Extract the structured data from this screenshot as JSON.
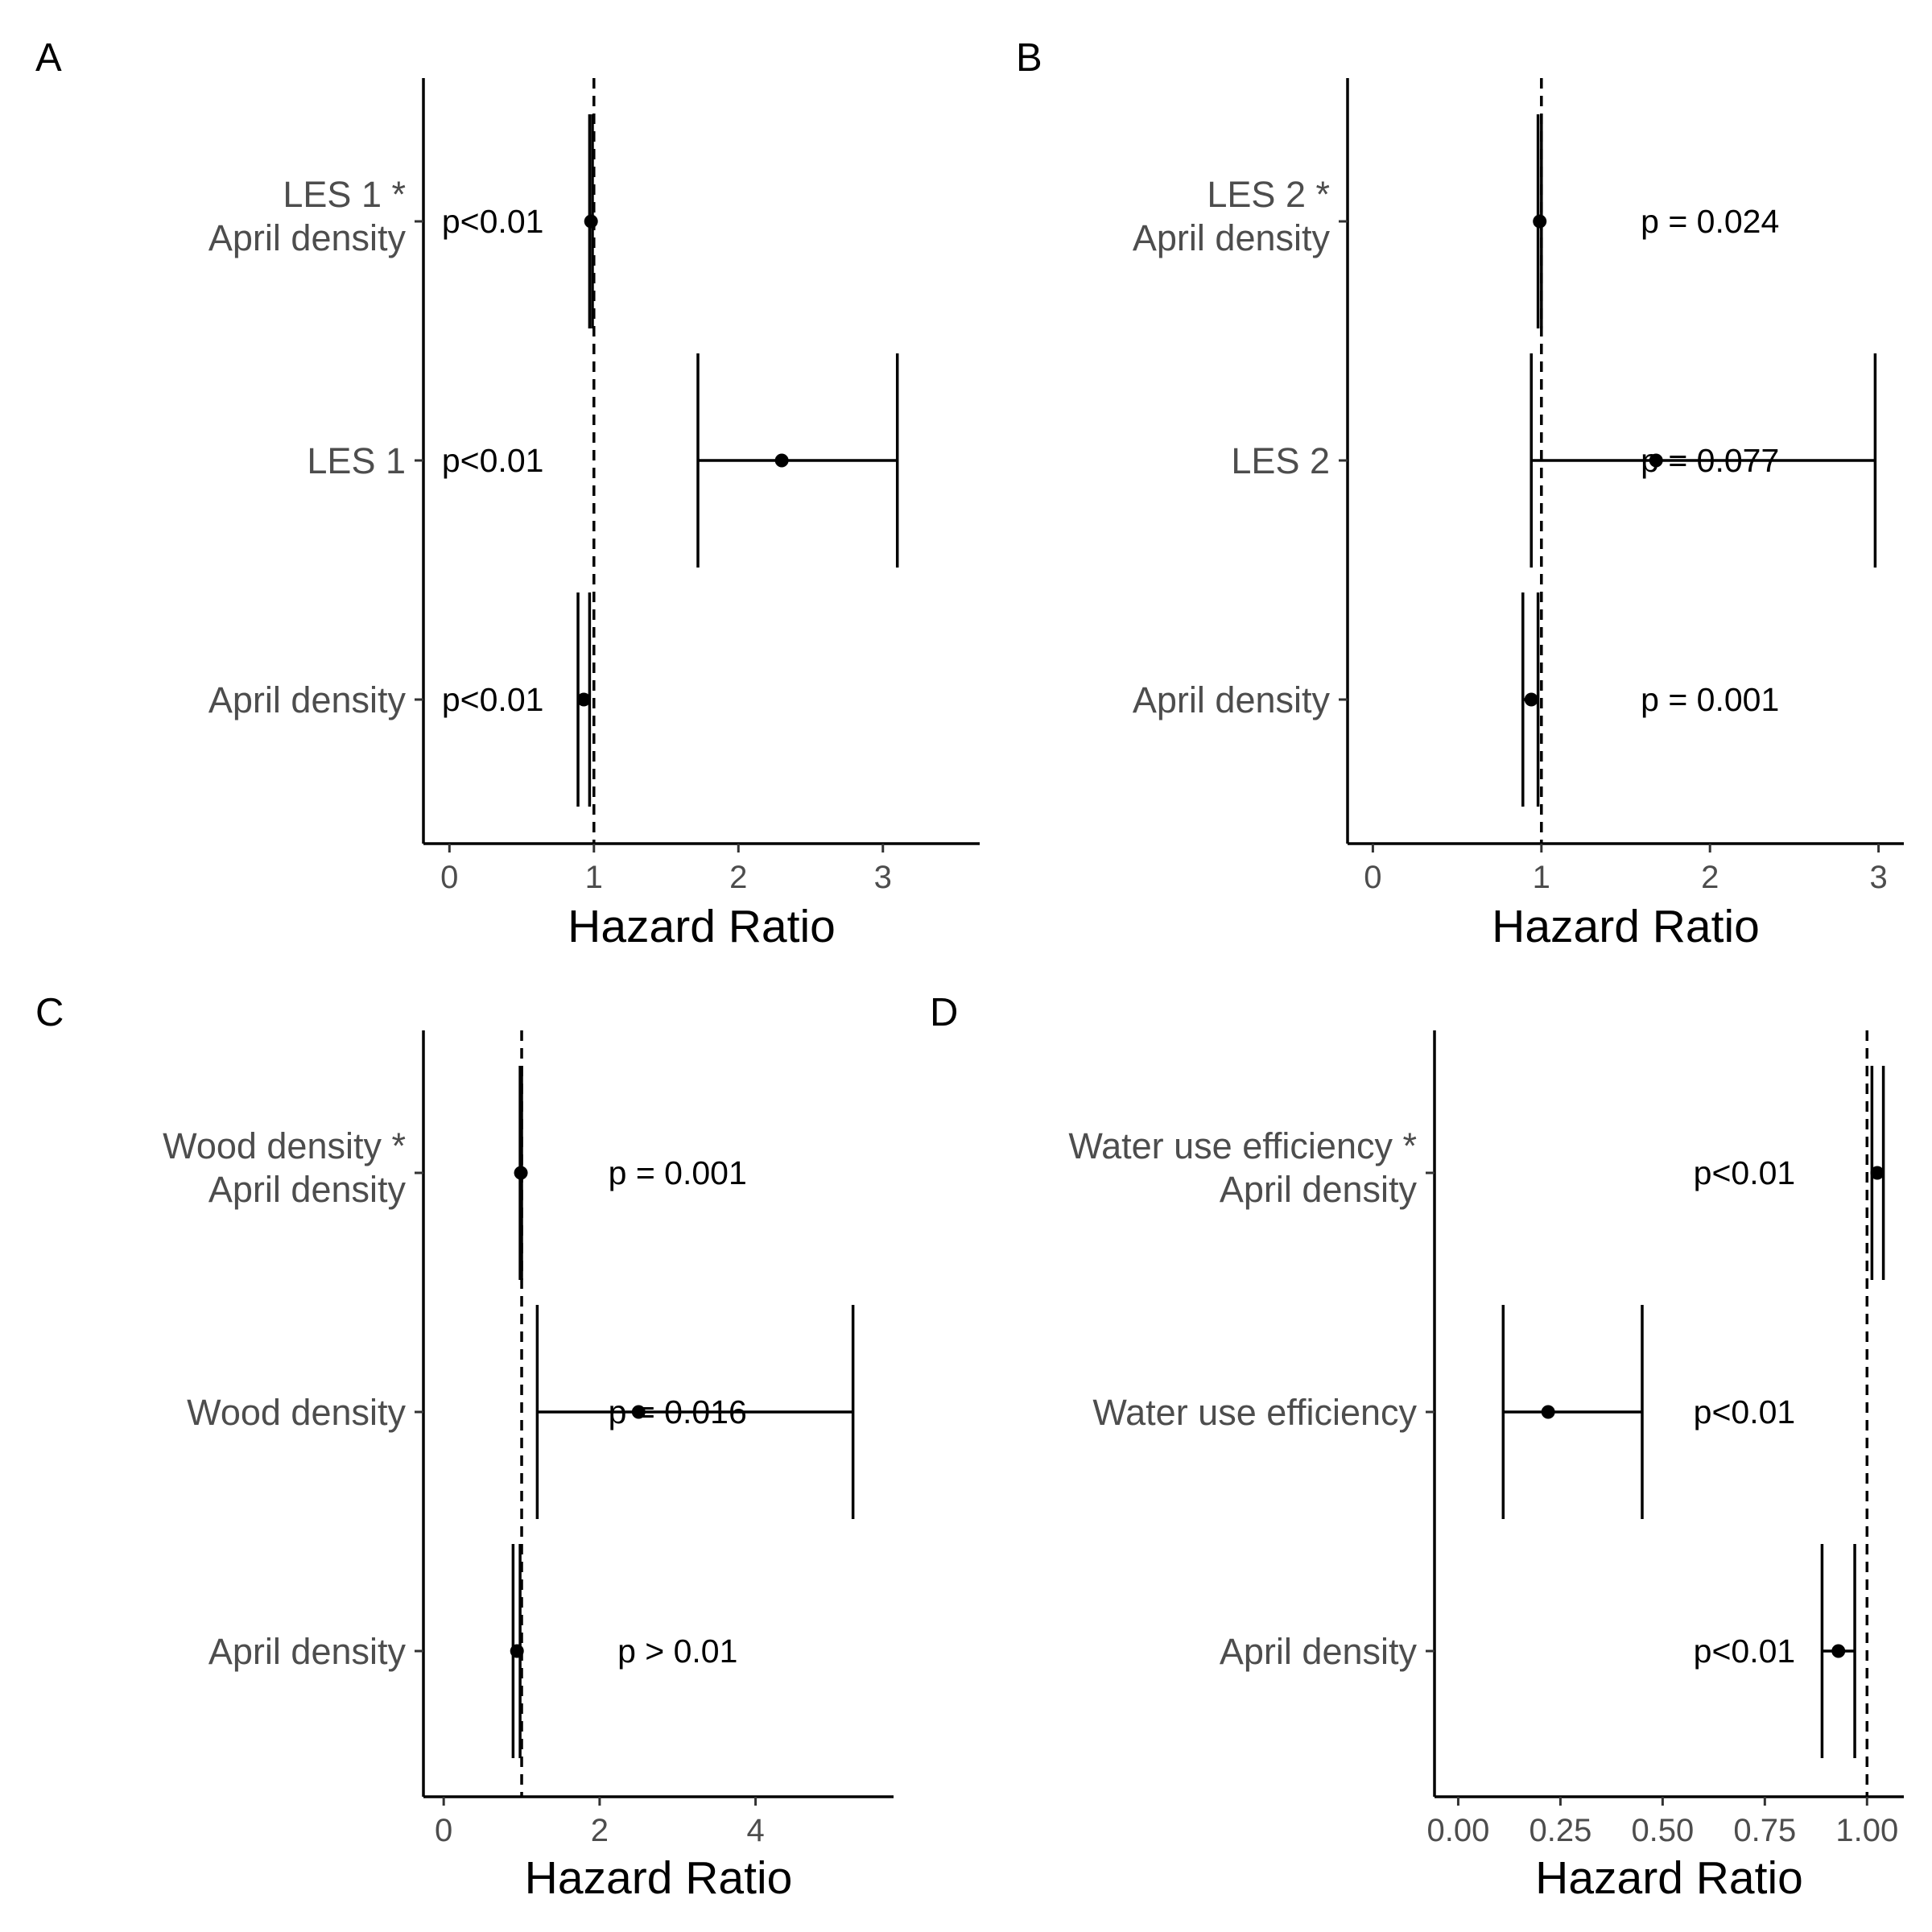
{
  "chart_data": [
    {
      "panel": "A",
      "type": "forest",
      "xlabel": "Hazard Ratio",
      "xlim": [
        -0.18,
        3.67
      ],
      "xticks": [
        "0",
        "1",
        "2",
        "3"
      ],
      "reference_line": 1,
      "rows": [
        {
          "label_lines": [
            "LES 1 *",
            "April density"
          ],
          "estimate": 0.98,
          "lower": 0.97,
          "upper": 0.99,
          "p": "p<0.01",
          "p_x": 0.3
        },
        {
          "label_lines": [
            "LES 1"
          ],
          "estimate": 2.3,
          "lower": 1.72,
          "upper": 3.1,
          "p": "p<0.01",
          "p_x": 0.3
        },
        {
          "label_lines": [
            "April density"
          ],
          "estimate": 0.93,
          "lower": 0.89,
          "upper": 0.97,
          "p": "p<0.01",
          "p_x": 0.3
        }
      ]
    },
    {
      "panel": "B",
      "type": "forest",
      "xlabel": "Hazard Ratio",
      "xlim": [
        -0.15,
        3.15
      ],
      "xticks": [
        "0",
        "1",
        "2",
        "3"
      ],
      "reference_line": 1,
      "rows": [
        {
          "label_lines": [
            "LES 2 *",
            "April density"
          ],
          "estimate": 0.99,
          "lower": 0.98,
          "upper": 1.0,
          "p": "p = 0.024",
          "p_x": 2.0
        },
        {
          "label_lines": [
            "LES 2"
          ],
          "estimate": 1.68,
          "lower": 0.94,
          "upper": 2.98,
          "p": "p = 0.077",
          "p_x": 2.0
        },
        {
          "label_lines": [
            "April density"
          ],
          "estimate": 0.94,
          "lower": 0.89,
          "upper": 0.98,
          "p": "p = 0.001",
          "p_x": 2.0
        }
      ]
    },
    {
      "panel": "C",
      "type": "forest",
      "xlabel": "Hazard Ratio",
      "xlim": [
        -0.26,
        5.77
      ],
      "xticks": [
        "0",
        "2",
        "4"
      ],
      "reference_line": 1,
      "rows": [
        {
          "label_lines": [
            "Wood density *",
            "April density"
          ],
          "estimate": 0.99,
          "lower": 0.98,
          "upper": 1.0,
          "p": "p = 0.001",
          "p_x": 3.0
        },
        {
          "label_lines": [
            "Wood density"
          ],
          "estimate": 2.5,
          "lower": 1.2,
          "upper": 5.25,
          "p": "p = 0.016",
          "p_x": 3.0
        },
        {
          "label_lines": [
            "April density"
          ],
          "estimate": 0.94,
          "lower": 0.89,
          "upper": 0.98,
          "p": "p > 0.01",
          "p_x": 3.0
        }
      ]
    },
    {
      "panel": "D",
      "type": "forest",
      "xlabel": "Hazard Ratio",
      "xlim": [
        -0.058,
        1.09
      ],
      "xticks": [
        "0.00",
        "0.25",
        "0.50",
        "0.75",
        "1.00"
      ],
      "reference_line": 1,
      "rows": [
        {
          "label_lines": [
            "Water use efficiency *",
            "April density"
          ],
          "estimate": 1.025,
          "lower": 1.012,
          "upper": 1.04,
          "p": "p<0.01",
          "p_x": 0.7
        },
        {
          "label_lines": [
            "Water use efficiency"
          ],
          "estimate": 0.22,
          "lower": 0.11,
          "upper": 0.45,
          "p": "p<0.01",
          "p_x": 0.7
        },
        {
          "label_lines": [
            "April density"
          ],
          "estimate": 0.93,
          "lower": 0.89,
          "upper": 0.97,
          "p": "p<0.01",
          "p_x": 0.7
        }
      ]
    }
  ]
}
